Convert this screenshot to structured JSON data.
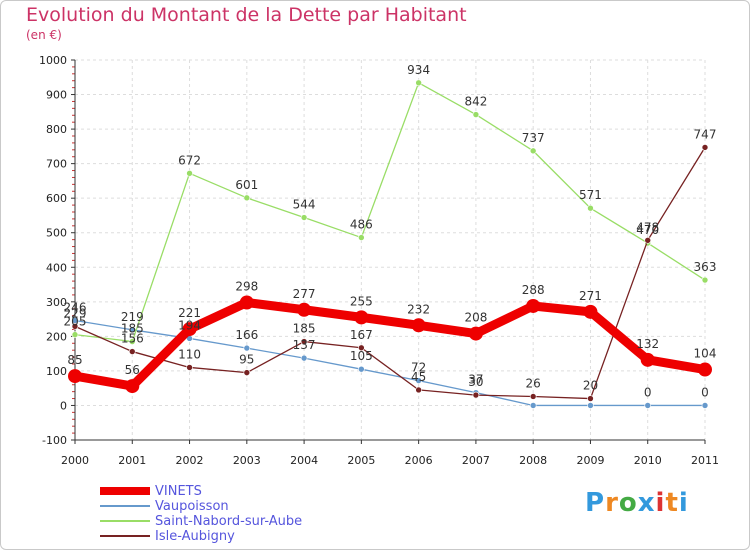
{
  "chart_data": {
    "type": "line",
    "title": "Evolution du Montant de la Dette par Habitant",
    "subtitle": "(en €)",
    "x": [
      "2000",
      "2001",
      "2002",
      "2003",
      "2004",
      "2005",
      "2006",
      "2007",
      "2008",
      "2009",
      "2010",
      "2011"
    ],
    "yticks": [
      "-100",
      "0",
      "100",
      "200",
      "300",
      "400",
      "500",
      "600",
      "700",
      "800",
      "900",
      "1000"
    ],
    "ylim": [
      -100,
      1000
    ],
    "grid": true,
    "legend_position": "bottom-left",
    "series": [
      {
        "name": "VINETS",
        "color": "#ee0000",
        "width": 9,
        "marker": 7,
        "values": [
          85,
          56,
          221,
          298,
          277,
          255,
          232,
          208,
          288,
          271,
          132,
          104
        ],
        "labels": [
          "85",
          "56",
          "221",
          "298",
          "277",
          "255",
          "232",
          "208",
          "288",
          "271",
          "132",
          "104"
        ]
      },
      {
        "name": "Vaupoisson",
        "color": "#6699cc",
        "width": 1.3,
        "marker": 3,
        "values": [
          246,
          219,
          194,
          166,
          137,
          105,
          72,
          37,
          0,
          0,
          0,
          0
        ],
        "labels": [
          "246",
          "219",
          "194",
          "166",
          "137",
          "105",
          "72",
          "37",
          "",
          "",
          "0",
          "0"
        ]
      },
      {
        "name": "Saint-Nabord-sur-Aube",
        "color": "#99dd66",
        "width": 1.3,
        "marker": 3,
        "values": [
          205,
          185,
          672,
          601,
          544,
          486,
          934,
          842,
          737,
          571,
          470,
          363
        ],
        "labels": [
          "205",
          "185",
          "672",
          "601",
          "544",
          "486",
          "934",
          "842",
          "737",
          "571",
          "470",
          "363"
        ]
      },
      {
        "name": "Isle-Aubigny",
        "color": "#772222",
        "width": 1.3,
        "marker": 3,
        "values": [
          229,
          156,
          110,
          95,
          185,
          167,
          45,
          30,
          26,
          20,
          478,
          747
        ],
        "labels": [
          "229",
          "156",
          "110",
          "95",
          "185",
          "167",
          "45",
          "30",
          "26",
          "20",
          "478",
          "747"
        ]
      }
    ]
  },
  "logo": {
    "text": "Proxiti",
    "colors": [
      "#3399dd",
      "#ee8822",
      "#44aa44",
      "#3399dd",
      "#dd3333",
      "#ee8822",
      "#3399dd"
    ]
  }
}
